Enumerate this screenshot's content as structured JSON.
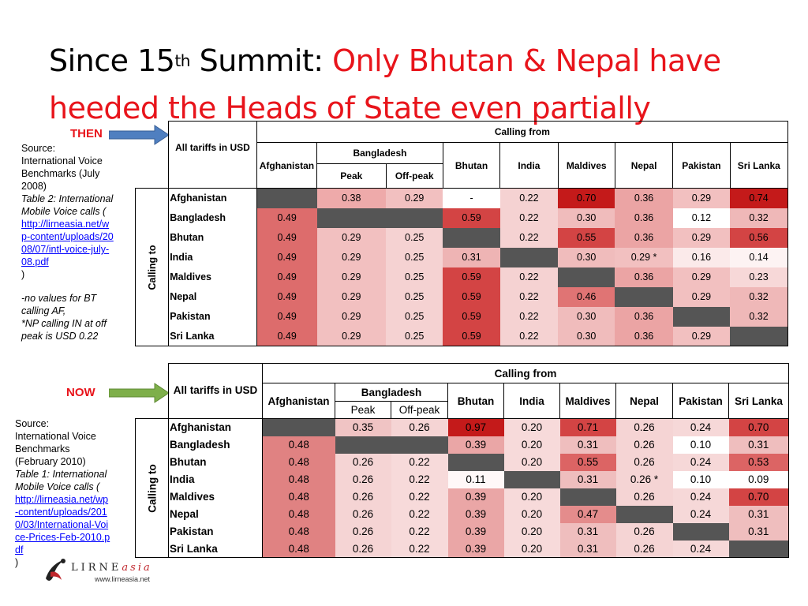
{
  "title": {
    "prefix": "Since 15",
    "sup": "th",
    "middle": " Summit: ",
    "highlight": "Only Bhutan & Nepal have heeded the Heads of State even partially"
  },
  "then": {
    "tag": "THEN",
    "source": {
      "line1": "Source:",
      "line2": "International Voice Benchmarks (July 2008)",
      "line3": "Table 2: International Mobile Voice calls (",
      "link": "http://lirneasia.net/wp-content/uploads/2008/07/intl-voice-july-08.pdf",
      "close": " )",
      "note1": "-no values for BT calling AF,",
      "note2": "*NP calling IN at off peak is USD 0.22"
    },
    "table": {
      "corner": "All tariffs in USD",
      "calling_from": "Calling from",
      "calling_to": "Calling to",
      "columns": [
        "Afghanistan",
        "Bangladesh",
        "Bhutan",
        "India",
        "Maldives",
        "Nepal",
        "Pakistan",
        "Sri Lanka"
      ],
      "sub": [
        "Peak",
        "Off-peak"
      ],
      "rows": [
        {
          "name": "Afghanistan",
          "cells": [
            "",
            "0.38",
            "0.29",
            "-",
            "0.22",
            "0.70",
            "0.36",
            "0.29",
            "0.74"
          ]
        },
        {
          "name": "Bangladesh",
          "cells": [
            "0.49",
            "",
            "",
            "0.59",
            "0.22",
            "0.30",
            "0.36",
            "0.12",
            "0.32"
          ]
        },
        {
          "name": "Bhutan",
          "cells": [
            "0.49",
            "0.29",
            "0.25",
            "",
            "0.22",
            "0.55",
            "0.36",
            "0.29",
            "0.56"
          ]
        },
        {
          "name": "India",
          "cells": [
            "0.49",
            "0.29",
            "0.25",
            "0.31",
            "",
            "0.30",
            "0.29 *",
            "0.16",
            "0.14"
          ]
        },
        {
          "name": "Maldives",
          "cells": [
            "0.49",
            "0.29",
            "0.25",
            "0.59",
            "0.22",
            "",
            "0.36",
            "0.29",
            "0.23"
          ]
        },
        {
          "name": "Nepal",
          "cells": [
            "0.49",
            "0.29",
            "0.25",
            "0.59",
            "0.22",
            "0.46",
            "",
            "0.29",
            "0.32"
          ]
        },
        {
          "name": "Pakistan",
          "cells": [
            "0.49",
            "0.29",
            "0.25",
            "0.59",
            "0.22",
            "0.30",
            "0.36",
            "",
            "0.32"
          ]
        },
        {
          "name": "Sri Lanka",
          "cells": [
            "0.49",
            "0.29",
            "0.25",
            "0.59",
            "0.22",
            "0.30",
            "0.36",
            "0.29",
            ""
          ]
        }
      ],
      "colors": [
        [
          "#555555",
          "#eeaaaa",
          "#f2c0c0",
          "#ffffff",
          "#f5d2d2",
          "#c41a1a",
          "#eba4a4",
          "#f2c0c0",
          "#c41a1a"
        ],
        [
          "#dd6c6c",
          "#555555",
          "#555555",
          "#d34444",
          "#f5d2d2",
          "#f0bcbc",
          "#eba4a4",
          "#ffffff",
          "#efb8b8"
        ],
        [
          "#dd6c6c",
          "#f2c0c0",
          "#f5d2d2",
          "#555555",
          "#f5d2d2",
          "#d34444",
          "#eba4a4",
          "#f2c0c0",
          "#d34444"
        ],
        [
          "#dd6c6c",
          "#f2c0c0",
          "#f5d2d2",
          "#eeb4b4",
          "#555555",
          "#f0bcbc",
          "#f2c0c0",
          "#fbeaea",
          "#fdf3f3"
        ],
        [
          "#dd6c6c",
          "#f2c0c0",
          "#f5d2d2",
          "#d34444",
          "#f5d2d2",
          "#555555",
          "#eba4a4",
          "#f2c0c0",
          "#f7d8d8"
        ],
        [
          "#dd6c6c",
          "#f2c0c0",
          "#f5d2d2",
          "#d34444",
          "#f5d2d2",
          "#e07474",
          "#555555",
          "#f2c0c0",
          "#efb8b8"
        ],
        [
          "#dd6c6c",
          "#f2c0c0",
          "#f5d2d2",
          "#d34444",
          "#f5d2d2",
          "#f0bcbc",
          "#eba4a4",
          "#555555",
          "#efb8b8"
        ],
        [
          "#dd6c6c",
          "#f2c0c0",
          "#f5d2d2",
          "#d34444",
          "#f5d2d2",
          "#f0bcbc",
          "#eba4a4",
          "#f2c0c0",
          "#555555"
        ]
      ]
    }
  },
  "now": {
    "tag": "NOW",
    "source": {
      "line1": "Source:",
      "line2": "International Voice Benchmarks (February 2010)",
      "line3": "Table 1: International Mobile Voice calls (",
      "link": "http://lirneasia.net/wp-content/uploads/2010/03/International-Voice-Prices-Feb-2010.pdf",
      "close": " )"
    },
    "table": {
      "corner": "All tariffs in USD",
      "calling_from": "Calling from",
      "calling_to": "Calling to",
      "columns": [
        "Afghanistan",
        "Bangladesh",
        "Bhutan",
        "India",
        "Maldives",
        "Nepal",
        "Pakistan",
        "Sri Lanka"
      ],
      "sub": [
        "Peak",
        "Off-peak"
      ],
      "rows": [
        {
          "name": "Afghanistan",
          "cells": [
            "",
            "0.35",
            "0.26",
            "0.97",
            "0.20",
            "0.71",
            "0.26",
            "0.24",
            "0.70"
          ]
        },
        {
          "name": "Bangladesh",
          "cells": [
            "0.48",
            "",
            "",
            "0.39",
            "0.20",
            "0.31",
            "0.26",
            "0.10",
            "0.31"
          ]
        },
        {
          "name": "Bhutan",
          "cells": [
            "0.48",
            "0.26",
            "0.22",
            "",
            "0.20",
            "0.55",
            "0.26",
            "0.24",
            "0.53"
          ]
        },
        {
          "name": "India",
          "cells": [
            "0.48",
            "0.26",
            "0.22",
            "0.11",
            "",
            "0.31",
            "0.26 *",
            "0.10",
            "0.09"
          ]
        },
        {
          "name": "Maldives",
          "cells": [
            "0.48",
            "0.26",
            "0.22",
            "0.39",
            "0.20",
            "",
            "0.26",
            "0.24",
            "0.70"
          ]
        },
        {
          "name": "Nepal",
          "cells": [
            "0.48",
            "0.26",
            "0.22",
            "0.39",
            "0.20",
            "0.47",
            "",
            "0.24",
            "0.31"
          ]
        },
        {
          "name": "Pakistan",
          "cells": [
            "0.48",
            "0.26",
            "0.22",
            "0.39",
            "0.20",
            "0.31",
            "0.26",
            "",
            "0.31"
          ]
        },
        {
          "name": "Sri Lanka",
          "cells": [
            "0.48",
            "0.26",
            "0.22",
            "0.39",
            "0.20",
            "0.31",
            "0.26",
            "0.24",
            ""
          ]
        }
      ],
      "colors": [
        [
          "#555555",
          "#f0c4c4",
          "#f5d4d4",
          "#c41a1a",
          "#f7dada",
          "#d34444",
          "#f5d4d4",
          "#f6d8d8",
          "#d34444"
        ],
        [
          "#e08282",
          "#555555",
          "#555555",
          "#eaa6a6",
          "#f7dada",
          "#efbebe",
          "#f5d4d4",
          "#ffffff",
          "#efbebe"
        ],
        [
          "#e08282",
          "#f5d4d4",
          "#f7dada",
          "#555555",
          "#f7dada",
          "#dc6464",
          "#f5d4d4",
          "#f6d8d8",
          "#dc6464"
        ],
        [
          "#e08282",
          "#f5d4d4",
          "#f7dada",
          "#fff8f8",
          "#555555",
          "#efbebe",
          "#f5d4d4",
          "#ffffff",
          "#ffffff"
        ],
        [
          "#e08282",
          "#f5d4d4",
          "#f7dada",
          "#eaa6a6",
          "#f7dada",
          "#555555",
          "#f5d4d4",
          "#f6d8d8",
          "#d34444"
        ],
        [
          "#e08282",
          "#f5d4d4",
          "#f7dada",
          "#eaa6a6",
          "#f7dada",
          "#e48c8c",
          "#555555",
          "#f6d8d8",
          "#efbebe"
        ],
        [
          "#e08282",
          "#f5d4d4",
          "#f7dada",
          "#eaa6a6",
          "#f7dada",
          "#efbebe",
          "#f5d4d4",
          "#555555",
          "#efbebe"
        ],
        [
          "#e08282",
          "#f5d4d4",
          "#f7dada",
          "#eaa6a6",
          "#f7dada",
          "#efbebe",
          "#f5d4d4",
          "#f6d8d8",
          "#555555"
        ]
      ]
    }
  },
  "logo": {
    "brand": "LIRNE",
    "brand_suffix": "asia",
    "url": "www.lirneasia.net"
  },
  "colors": {
    "accent_red": "#e8141b",
    "arrow_then": "#4f7fc0",
    "arrow_now": "#7eaf4a"
  }
}
